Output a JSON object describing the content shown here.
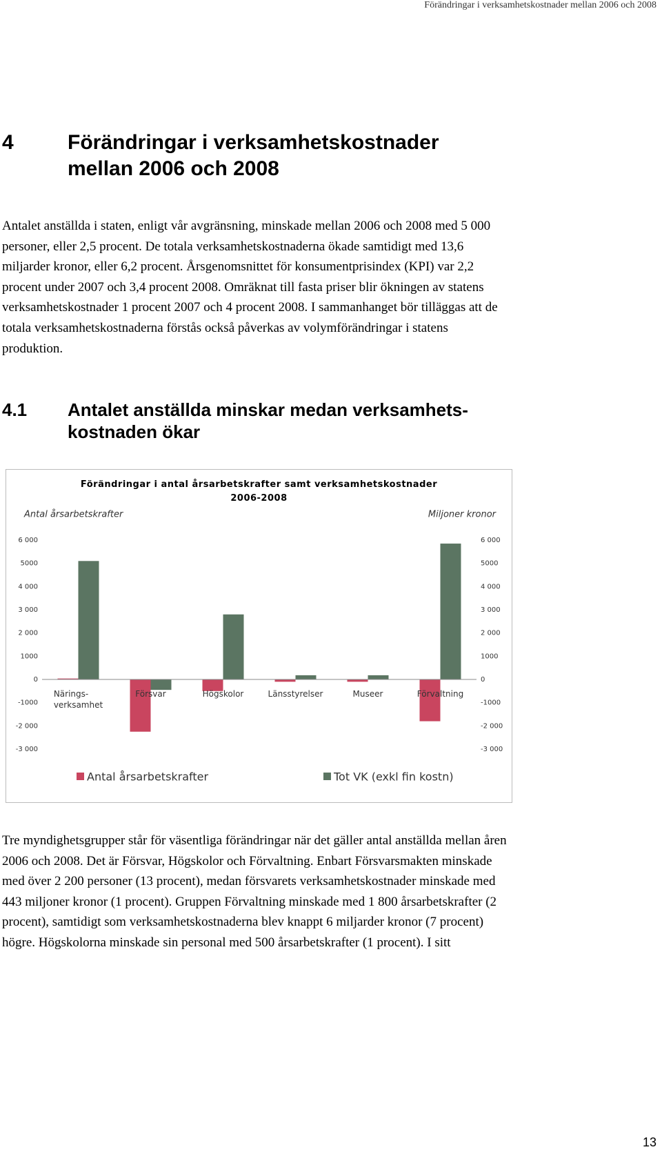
{
  "header": {
    "running_title": "Förändringar i verksamhetskostnader mellan 2006 och 2008"
  },
  "section": {
    "number": "4",
    "title": "Förändringar i verksamhetskostnader mellan 2006 och 2008"
  },
  "paragraph_1": "Antalet anställda i staten, enligt vår avgränsning, minskade mellan 2006 och 2008 med 5 000 personer, eller 2,5 procent. De totala verksamhetskostnaderna ökade samtidigt med 13,6 miljarder kronor, eller 6,2 procent. Årsgenomsnittet för konsumentprisindex (KPI) var 2,2 procent under 2007 och 3,4 procent 2008. Omräknat till fasta priser blir ökningen av statens verksamhetskostnader 1 procent 2007 och 4 procent 2008. I sammanhanget bör tilläggas att de totala verksamhetskostnaderna förstås också påverkas av volymförändringar i statens produktion.",
  "subsection": {
    "number": "4.1",
    "title": "Antalet anställda minskar medan verksamhets-\nkostnaden ökar"
  },
  "chart_data": {
    "type": "bar",
    "title": "Förändringar i antal årsarbetskrafter samt verksamhetskostnader\n2006-2008",
    "ylabel": "Antal årsarbetskrafter",
    "y2label": "Miljoner kronor",
    "categories": [
      "Närings-\nverksamhet",
      "Försvar",
      "Högskolor",
      "Länsstyrelser",
      "Museer",
      "Förvaltning"
    ],
    "series": [
      {
        "name": "Antal årsarbetskrafter",
        "color": "#c9455f",
        "values": [
          40,
          -2250,
          -500,
          -100,
          -100,
          -1800
        ]
      },
      {
        "name": "Tot VK (exkl fin kostn)",
        "color": "#5b7562",
        "axis": "y2",
        "values": [
          5100,
          -450,
          2800,
          180,
          180,
          5850
        ]
      }
    ],
    "ylim": [
      -3000,
      6000
    ],
    "yticks": [
      {
        "value": 6000,
        "label": "6 000"
      },
      5000,
      {
        "value": 4000,
        "label": "4 000"
      },
      {
        "value": 3000,
        "label": "3 000"
      },
      {
        "value": 2000,
        "label": "2 000"
      },
      1000,
      0,
      -1000,
      {
        "value": -2000,
        "label": "-2 000"
      },
      {
        "value": -3000,
        "label": "-3 000"
      }
    ],
    "y2lim": [
      -3000,
      6000
    ],
    "y2ticks": [
      {
        "value": 6000,
        "label": "6 000"
      },
      5000,
      {
        "value": 4000,
        "label": "4 000"
      },
      {
        "value": 3000,
        "label": "3 000"
      },
      {
        "value": 2000,
        "label": "2 000"
      },
      1000,
      0,
      -1000,
      {
        "value": -2000,
        "label": "-2 000"
      },
      {
        "value": -3000,
        "label": "-3 000"
      }
    ],
    "legend": "bottom"
  },
  "paragraph_2": "Tre myndighetsgrupper står för väsentliga förändringar när det gäller antal anställda mellan åren 2006 och 2008. Det är Försvar, Högskolor och Förvaltning. Enbart Försvarsmakten minskade med över 2 200 personer (13 procent), medan försvarets verksamhetskostnader minskade med 443 miljoner kronor (1 procent). Gruppen Förvaltning minskade med 1 800 årsarbetskrafter (2 procent), samtidigt som verksamhetskostnaderna blev knappt 6 miljarder kronor (7 procent) högre. Högskolorna minskade sin personal med 500 årsarbetskrafter (1 procent). I sitt",
  "footer": {
    "page_number": "13"
  }
}
